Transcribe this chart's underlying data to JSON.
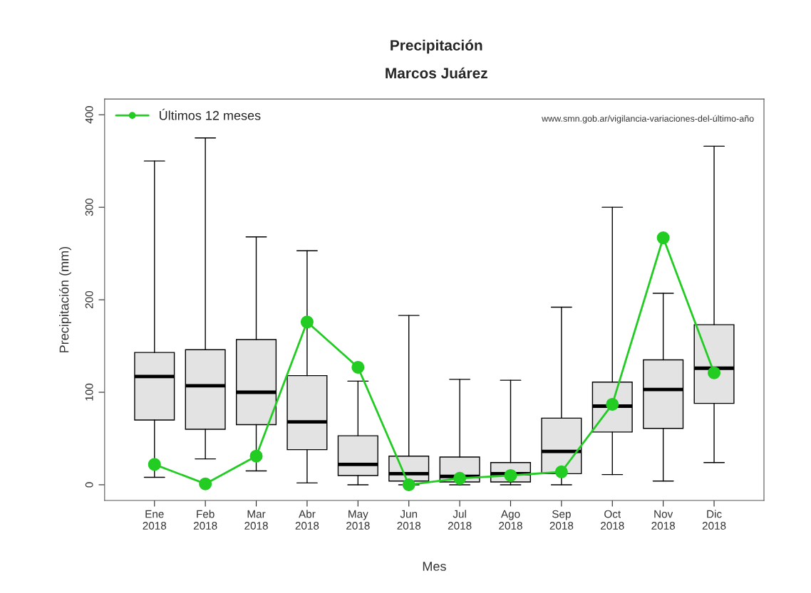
{
  "chart_data": {
    "type": "box",
    "title": "Precipitación",
    "subtitle": "Marcos Juárez",
    "xlabel": "Mes",
    "ylabel": "Precipitación (mm)",
    "annotations": [
      "www.smn.gob.ar/vigilancia-variaciones-del-último-año"
    ],
    "categories": [
      "Ene\n2018",
      "Feb\n2018",
      "Mar\n2018",
      "Abr\n2018",
      "May\n2018",
      "Jun\n2018",
      "Jul\n2018",
      "Ago\n2018",
      "Sep\n2018",
      "Oct\n2018",
      "Nov\n2018",
      "Dic\n2018"
    ],
    "ylim": [
      -17,
      417
    ],
    "yticks": [
      0,
      100,
      200,
      300,
      400
    ],
    "grid": false,
    "legend": "top left",
    "color": "#e3e3e3",
    "boxes": [
      {
        "low": 8,
        "q1": 70,
        "median": 117,
        "q3": 143,
        "high": 350
      },
      {
        "low": 28,
        "q1": 60,
        "median": 107,
        "q3": 146,
        "high": 375
      },
      {
        "low": 15,
        "q1": 65,
        "median": 100,
        "q3": 157,
        "high": 268
      },
      {
        "low": 2,
        "q1": 38,
        "median": 68,
        "q3": 118,
        "high": 253
      },
      {
        "low": 0,
        "q1": 10,
        "median": 22,
        "q3": 53,
        "high": 112
      },
      {
        "low": 0,
        "q1": 4,
        "median": 12,
        "q3": 31,
        "high": 183
      },
      {
        "low": 0,
        "q1": 3,
        "median": 9,
        "q3": 30,
        "high": 114
      },
      {
        "low": 0,
        "q1": 3,
        "median": 12,
        "q3": 24,
        "high": 113
      },
      {
        "low": 0,
        "q1": 12,
        "median": 36,
        "q3": 72,
        "high": 192
      },
      {
        "low": 11,
        "q1": 57,
        "median": 85,
        "q3": 111,
        "high": 300
      },
      {
        "low": 4,
        "q1": 61,
        "median": 103,
        "q3": 135,
        "high": 207
      },
      {
        "low": 24,
        "q1": 88,
        "median": 126,
        "q3": 173,
        "high": 366
      }
    ],
    "series": [
      {
        "name": "Últimos 12 meses",
        "type": "line",
        "marker": "circle",
        "color": "#22cc22",
        "values": [
          22,
          1,
          31,
          176,
          127,
          0,
          7,
          10,
          14,
          87,
          267,
          121
        ]
      }
    ]
  }
}
